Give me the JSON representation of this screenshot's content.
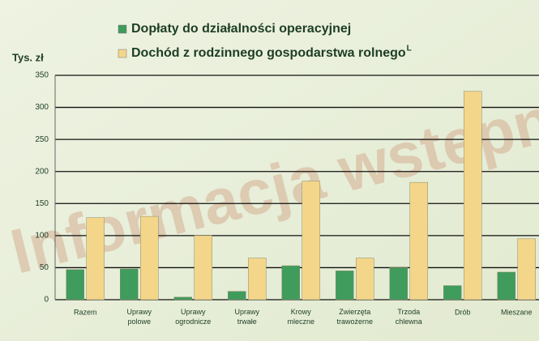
{
  "chart_data": {
    "type": "bar",
    "y_axis_label": "Tys. zł",
    "watermark": "Informacja wstępna",
    "categories": [
      "Razem",
      "Uprawy polowe",
      "Uprawy ogrodnicze",
      "Uprawy trwałe",
      "Krowy mleczne",
      "Zwierzęta trawożerne",
      "Trzoda chlewna",
      "Drób",
      "Mieszane"
    ],
    "series": [
      {
        "name": "Dopłaty do działalności operacyjnej",
        "color": "#3f9c5c",
        "values": [
          47,
          48,
          4,
          13,
          53,
          45,
          50,
          22,
          43
        ]
      },
      {
        "name": "Dochód z rodzinnego gospodarstwa rolnego",
        "footnote_mark": "L",
        "color": "#f3d68a",
        "values": [
          128,
          130,
          100,
          65,
          185,
          65,
          183,
          325,
          95
        ]
      }
    ],
    "ylim": [
      0,
      350
    ],
    "yticks": [
      0,
      50,
      100,
      150,
      200,
      250,
      300,
      350
    ],
    "grid": true
  }
}
